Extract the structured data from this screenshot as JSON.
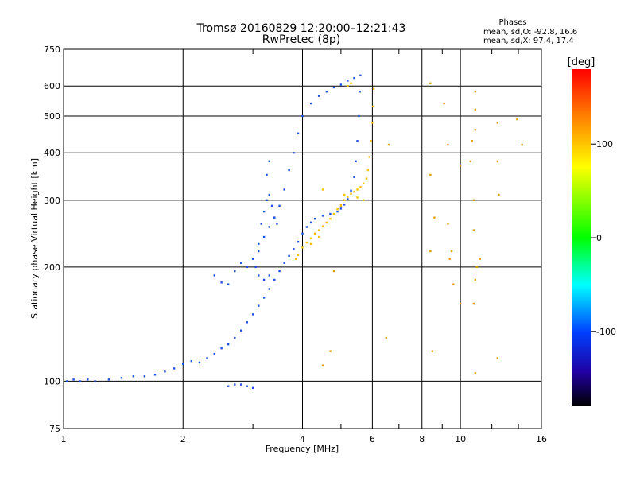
{
  "chart_data": {
    "type": "scatter",
    "title": "Tromsø 20160829 12:20:00–12:21:43",
    "subtitle": "RwPretec (8p)",
    "xlabel": "Frequency [MHz]",
    "ylabel": "Stationary phase Virtual Height [km]",
    "x_scale": "log",
    "y_scale": "log",
    "xlim": [
      1,
      16
    ],
    "ylim": [
      75,
      750
    ],
    "x_ticks": [
      1,
      2,
      4,
      6,
      8,
      10,
      16
    ],
    "y_ticks": [
      75,
      100,
      200,
      300,
      400,
      500,
      600,
      750
    ],
    "grid": true,
    "stats": {
      "heading": "Phases",
      "line_o": "mean, sd,O: -92.8, 16.6",
      "line_x": "mean, sd,X:  97.4, 17.4"
    },
    "colorbar": {
      "label": "[deg]",
      "range": [
        -180,
        180
      ],
      "ticks": [
        100,
        0,
        -100
      ],
      "colors": [
        "#ff0000",
        "#ff8000",
        "#ffff00",
        "#00ff00",
        "#00ffff",
        "#0040ff",
        "#2000a0",
        "#000000"
      ]
    },
    "series": [
      {
        "mode": "O",
        "color": "#2050e0",
        "points": [
          [
            1.02,
            100
          ],
          [
            1.06,
            101
          ],
          [
            1.1,
            100
          ],
          [
            1.15,
            101
          ],
          [
            1.2,
            100
          ],
          [
            1.3,
            101
          ],
          [
            1.4,
            102
          ],
          [
            1.5,
            103
          ],
          [
            1.6,
            103
          ],
          [
            1.7,
            104
          ],
          [
            1.8,
            106
          ],
          [
            1.9,
            108
          ],
          [
            2.0,
            111
          ],
          [
            2.1,
            113
          ],
          [
            2.2,
            112
          ],
          [
            2.3,
            115
          ],
          [
            2.4,
            118
          ],
          [
            2.5,
            122
          ],
          [
            2.6,
            125
          ],
          [
            2.7,
            130
          ],
          [
            2.8,
            136
          ],
          [
            2.9,
            143
          ],
          [
            3.0,
            150
          ],
          [
            3.1,
            158
          ],
          [
            3.2,
            166
          ],
          [
            3.3,
            175
          ],
          [
            3.4,
            185
          ],
          [
            3.5,
            195
          ],
          [
            3.6,
            205
          ],
          [
            3.7,
            214
          ],
          [
            3.8,
            223
          ],
          [
            3.9,
            233
          ],
          [
            4.0,
            245
          ],
          [
            4.1,
            255
          ],
          [
            4.2,
            262
          ],
          [
            4.3,
            268
          ],
          [
            4.5,
            273
          ],
          [
            4.7,
            276
          ],
          [
            4.9,
            280
          ],
          [
            5.0,
            285
          ],
          [
            5.1,
            292
          ],
          [
            5.2,
            302
          ],
          [
            5.3,
            318
          ],
          [
            5.4,
            345
          ],
          [
            5.45,
            380
          ],
          [
            5.5,
            430
          ],
          [
            5.55,
            500
          ],
          [
            5.58,
            580
          ],
          [
            5.6,
            640
          ],
          [
            2.4,
            190
          ],
          [
            2.5,
            182
          ],
          [
            2.6,
            180
          ],
          [
            2.7,
            195
          ],
          [
            2.8,
            205
          ],
          [
            2.9,
            200
          ],
          [
            3.0,
            210
          ],
          [
            3.1,
            220
          ],
          [
            3.2,
            240
          ],
          [
            3.3,
            255
          ],
          [
            3.4,
            270
          ],
          [
            3.5,
            290
          ],
          [
            3.6,
            320
          ],
          [
            3.7,
            360
          ],
          [
            3.8,
            400
          ],
          [
            3.9,
            450
          ],
          [
            4.0,
            500
          ],
          [
            4.2,
            540
          ],
          [
            4.4,
            565
          ],
          [
            4.6,
            580
          ],
          [
            4.8,
            595
          ],
          [
            5.0,
            605
          ],
          [
            5.2,
            620
          ],
          [
            5.4,
            630
          ],
          [
            3.05,
            200
          ],
          [
            3.1,
            230
          ],
          [
            3.15,
            260
          ],
          [
            3.2,
            280
          ],
          [
            3.25,
            300
          ],
          [
            3.3,
            310
          ],
          [
            3.35,
            290
          ],
          [
            3.4,
            270
          ],
          [
            3.45,
            260
          ],
          [
            3.1,
            190
          ],
          [
            3.2,
            185
          ],
          [
            3.3,
            190
          ],
          [
            3.25,
            350
          ],
          [
            3.3,
            380
          ],
          [
            3.0,
            96
          ],
          [
            2.9,
            97
          ],
          [
            2.8,
            98
          ],
          [
            2.7,
            98
          ],
          [
            2.6,
            97
          ]
        ]
      },
      {
        "mode": "X",
        "color": "#f5c000",
        "points": [
          [
            3.85,
            210
          ],
          [
            3.9,
            215
          ],
          [
            4.0,
            225
          ],
          [
            4.1,
            232
          ],
          [
            4.2,
            238
          ],
          [
            4.3,
            245
          ],
          [
            4.4,
            250
          ],
          [
            4.5,
            256
          ],
          [
            4.6,
            262
          ],
          [
            4.7,
            268
          ],
          [
            4.8,
            276
          ],
          [
            4.9,
            284
          ],
          [
            5.0,
            292
          ],
          [
            5.1,
            300
          ],
          [
            5.2,
            306
          ],
          [
            5.3,
            312
          ],
          [
            5.4,
            316
          ],
          [
            5.5,
            320
          ],
          [
            5.6,
            325
          ],
          [
            5.7,
            332
          ],
          [
            5.8,
            342
          ],
          [
            5.85,
            360
          ],
          [
            5.9,
            390
          ],
          [
            5.95,
            430
          ],
          [
            6.0,
            480
          ],
          [
            6.02,
            530
          ],
          [
            6.05,
            590
          ],
          [
            5.2,
            600
          ],
          [
            5.3,
            610
          ],
          [
            4.5,
            320
          ],
          [
            5.0,
            290
          ],
          [
            4.2,
            230
          ],
          [
            4.4,
            240
          ],
          [
            5.1,
            310
          ],
          [
            5.5,
            305
          ],
          [
            5.7,
            300
          ]
        ]
      },
      {
        "mode": "scatter",
        "color": "#e0a000",
        "points": [
          [
            8.4,
            610
          ],
          [
            9.1,
            540
          ],
          [
            8.4,
            350
          ],
          [
            8.6,
            270
          ],
          [
            8.4,
            220
          ],
          [
            9.3,
            420
          ],
          [
            9.3,
            260
          ],
          [
            9.5,
            220
          ],
          [
            9.4,
            210
          ],
          [
            10.9,
            580
          ],
          [
            10.9,
            520
          ],
          [
            10.9,
            460
          ],
          [
            10.8,
            300
          ],
          [
            10.8,
            250
          ],
          [
            11.0,
            200
          ],
          [
            10.9,
            185
          ],
          [
            10.8,
            160
          ],
          [
            10.9,
            105
          ],
          [
            11.2,
            210
          ],
          [
            10.7,
            430
          ],
          [
            10.6,
            380
          ],
          [
            12.4,
            480
          ],
          [
            12.4,
            380
          ],
          [
            12.5,
            310
          ],
          [
            12.4,
            115
          ],
          [
            13.9,
            490
          ],
          [
            14.3,
            420
          ],
          [
            6.6,
            420
          ],
          [
            6.5,
            130
          ],
          [
            4.8,
            195
          ],
          [
            4.7,
            120
          ],
          [
            4.5,
            110
          ],
          [
            9.6,
            180
          ],
          [
            10.0,
            370
          ],
          [
            10.0,
            160
          ],
          [
            8.5,
            120
          ]
        ]
      }
    ]
  }
}
